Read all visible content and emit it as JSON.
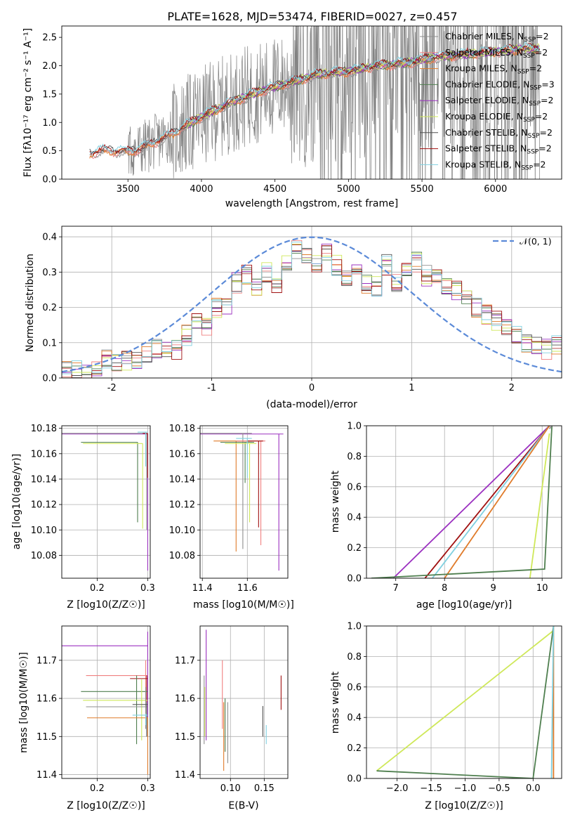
{
  "title": "PLATE=1628, MJD=53474, FIBERID=0027, z=0.457",
  "colors": {
    "Chabrier MILES": "#8f8f8f",
    "Salpeter MILES": "#f08080",
    "Kroupa MILES": "#e07b2a",
    "Chabrier ELODIE": "#4f7f4f",
    "Salpeter ELODIE": "#9b30c0",
    "Kroupa ELODIE": "#cfe85a",
    "Chabrier STELIB": "#505050",
    "Salpeter STELIB": "#a01010",
    "Kroupa STELIB": "#80d0e0",
    "normal": "#5b8ad8",
    "data": "#808080"
  },
  "chart_data": [
    {
      "type": "line",
      "xlabel": "wavelength [Angstrom, rest frame]",
      "ylabel": "Flux [f_λ10^-17 erg cm^-2 s^-1 A^-1]",
      "xlim": [
        3050,
        6450
      ],
      "ylim": [
        0,
        2.7
      ],
      "xticks": [
        3500,
        4000,
        4500,
        5000,
        5500,
        6000
      ],
      "yticks": [
        0.0,
        0.5,
        1.0,
        1.5,
        2.0,
        2.5
      ],
      "legend_position": "top-right",
      "legend": [
        "Chabrier MILES, N_SSP=2",
        "Salpeter MILES, N_SSP=2",
        "Kroupa MILES, N_SSP=2",
        "Chabrier ELODIE, N_SSP=3",
        "Salpeter ELODIE, N_SSP=2",
        "Kroupa ELODIE, N_SSP=2",
        "Chabrier STELIB, N_SSP=2",
        "Salpeter STELIB, N_SSP=2",
        "Kroupa STELIB, N_SSP=2"
      ],
      "model_trend": {
        "x": [
          3240,
          3300,
          3400,
          3500,
          3600,
          3800,
          4000,
          4200,
          4400,
          4600,
          4800,
          5000,
          5200,
          5400,
          5600,
          5800,
          6000,
          6200,
          6300
        ],
        "y": [
          0.45,
          0.5,
          0.5,
          0.48,
          0.55,
          0.8,
          1.1,
          1.35,
          1.55,
          1.7,
          1.85,
          1.9,
          2.0,
          2.05,
          2.15,
          2.2,
          2.25,
          2.3,
          2.3
        ]
      }
    },
    {
      "type": "histogram",
      "xlabel": "(data-model)/error",
      "ylabel": "Normed distribution",
      "xlim": [
        -2.5,
        2.5
      ],
      "ylim": [
        0,
        0.43
      ],
      "xticks": [
        -2,
        -1,
        0,
        1,
        2
      ],
      "yticks": [
        0.0,
        0.1,
        0.2,
        0.3,
        0.4
      ],
      "grid": true,
      "legend_position": "top-right",
      "legend": [
        "𝒩(0, 1)"
      ],
      "bins": {
        "x": [
          -2.5,
          -2.4,
          -2.3,
          -2.2,
          -2.1,
          -2.0,
          -1.9,
          -1.8,
          -1.7,
          -1.6,
          -1.5,
          -1.4,
          -1.3,
          -1.2,
          -1.1,
          -1.0,
          -0.9,
          -0.8,
          -0.7,
          -0.6,
          -0.5,
          -0.4,
          -0.3,
          -0.2,
          -0.1,
          0.0,
          0.1,
          0.2,
          0.3,
          0.4,
          0.5,
          0.6,
          0.7,
          0.8,
          0.9,
          1.0,
          1.1,
          1.2,
          1.3,
          1.4,
          1.5,
          1.6,
          1.7,
          1.8,
          1.9,
          2.0,
          2.1,
          2.2,
          2.3,
          2.4
        ],
        "y": [
          0.02,
          0.02,
          0.01,
          0.03,
          0.05,
          0.04,
          0.05,
          0.05,
          0.07,
          0.08,
          0.09,
          0.08,
          0.12,
          0.17,
          0.14,
          0.2,
          0.21,
          0.27,
          0.29,
          0.26,
          0.3,
          0.27,
          0.32,
          0.36,
          0.34,
          0.33,
          0.36,
          0.32,
          0.29,
          0.3,
          0.27,
          0.26,
          0.32,
          0.27,
          0.31,
          0.33,
          0.29,
          0.28,
          0.26,
          0.25,
          0.22,
          0.2,
          0.18,
          0.16,
          0.14,
          0.12,
          0.1,
          0.09,
          0.08,
          0.09
        ]
      }
    },
    {
      "type": "errorbar",
      "xlabel": "Z [log10(Z/Z☉)]",
      "ylabel": "age  [log10(age/yr)]",
      "xlim": [
        0.13,
        0.305
      ],
      "ylim": [
        10.062,
        10.182
      ],
      "xticks": [
        0.2,
        0.3
      ],
      "yticks": [
        10.08,
        10.1,
        10.12,
        10.14,
        10.16,
        10.18
      ]
    },
    {
      "type": "errorbar",
      "xlabel": "mass [log10(M/M☉)]",
      "ylabel": "",
      "xlim": [
        11.39,
        11.78
      ],
      "ylim": [
        10.062,
        10.182
      ],
      "xticks": [
        11.4,
        11.6
      ],
      "yticks": [
        10.08,
        10.1,
        10.12,
        10.14,
        10.16,
        10.18
      ]
    },
    {
      "type": "line",
      "xlabel": "age  [log10(age/yr)]",
      "ylabel": "mass weight",
      "xlim": [
        6.4,
        10.4
      ],
      "ylim": [
        0,
        1
      ],
      "xticks": [
        7,
        8,
        9,
        10
      ],
      "yticks": [
        0.0,
        0.2,
        0.4,
        0.6,
        0.8,
        1.0
      ],
      "grid": true
    },
    {
      "type": "errorbar",
      "xlabel": "Z [log10(Z/Z☉)]",
      "ylabel": "mass [log10(M/M☉)]",
      "xlim": [
        0.13,
        0.305
      ],
      "ylim": [
        11.39,
        11.79
      ],
      "xticks": [
        0.2,
        0.3
      ],
      "yticks": [
        11.4,
        11.5,
        11.6,
        11.7
      ]
    },
    {
      "type": "errorbar",
      "xlabel": "E(B-V)",
      "ylabel": "",
      "xlim": [
        0.055,
        0.185
      ],
      "ylim": [
        11.39,
        11.79
      ],
      "xticks": [
        0.1,
        0.15
      ],
      "yticks": [
        11.4,
        11.5,
        11.6,
        11.7
      ]
    },
    {
      "type": "line",
      "xlabel": "Z [log10(Z/Z☉)]",
      "ylabel": "mass weight",
      "xlim": [
        -2.45,
        0.42
      ],
      "ylim": [
        0,
        1
      ],
      "xticks": [
        -2.0,
        -1.5,
        -1.0,
        -0.5,
        0.0
      ],
      "yticks": [
        0.0,
        0.2,
        0.4,
        0.6,
        0.8,
        1.0
      ],
      "grid": true
    }
  ]
}
